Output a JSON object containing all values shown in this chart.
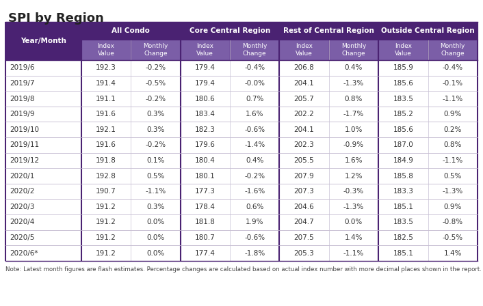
{
  "title": "SPI by Region",
  "note": "Note: Latest month figures are flash estimates. Percentage changes are calculated based on actual index number with more decimal places shown in the report.",
  "header_bg": "#4a2272",
  "header_text": "#ffffff",
  "subheader_bg": "#7b5ea7",
  "subheader_text": "#ffffff",
  "row_bg": "#ffffff",
  "border_color": "#c8c0d4",
  "thick_border_color": "#4a2272",
  "title_color": "#222222",
  "body_text_color": "#333333",
  "note_text_color": "#444444",
  "col0_header": "Year/Month",
  "group_headers": [
    "All Condo",
    "Core Central Region",
    "Rest of Central Region",
    "Outside Central Region"
  ],
  "sub_headers": [
    "Index\nValue",
    "Monthly\nChange"
  ],
  "col_widths_raw": [
    1.3,
    0.85,
    0.85,
    0.85,
    0.85,
    0.85,
    0.85,
    0.85,
    0.85
  ],
  "rows": [
    [
      "2019/6",
      "192.3",
      "-0.2%",
      "179.4",
      "-0.4%",
      "206.8",
      "0.4%",
      "185.9",
      "-0.4%"
    ],
    [
      "2019/7",
      "191.4",
      "-0.5%",
      "179.4",
      "-0.0%",
      "204.1",
      "-1.3%",
      "185.6",
      "-0.1%"
    ],
    [
      "2019/8",
      "191.1",
      "-0.2%",
      "180.6",
      "0.7%",
      "205.7",
      "0.8%",
      "183.5",
      "-1.1%"
    ],
    [
      "2019/9",
      "191.6",
      "0.3%",
      "183.4",
      "1.6%",
      "202.2",
      "-1.7%",
      "185.2",
      "0.9%"
    ],
    [
      "2019/10",
      "192.1",
      "0.3%",
      "182.3",
      "-0.6%",
      "204.1",
      "1.0%",
      "185.6",
      "0.2%"
    ],
    [
      "2019/11",
      "191.6",
      "-0.2%",
      "179.6",
      "-1.4%",
      "202.3",
      "-0.9%",
      "187.0",
      "0.8%"
    ],
    [
      "2019/12",
      "191.8",
      "0.1%",
      "180.4",
      "0.4%",
      "205.5",
      "1.6%",
      "184.9",
      "-1.1%"
    ],
    [
      "2020/1",
      "192.8",
      "0.5%",
      "180.1",
      "-0.2%",
      "207.9",
      "1.2%",
      "185.8",
      "0.5%"
    ],
    [
      "2020/2",
      "190.7",
      "-1.1%",
      "177.3",
      "-1.6%",
      "207.3",
      "-0.3%",
      "183.3",
      "-1.3%"
    ],
    [
      "2020/3",
      "191.2",
      "0.3%",
      "178.4",
      "0.6%",
      "204.6",
      "-1.3%",
      "185.1",
      "0.9%"
    ],
    [
      "2020/4",
      "191.2",
      "0.0%",
      "181.8",
      "1.9%",
      "204.7",
      "0.0%",
      "183.5",
      "-0.8%"
    ],
    [
      "2020/5",
      "191.2",
      "0.0%",
      "180.7",
      "-0.6%",
      "207.5",
      "1.4%",
      "182.5",
      "-0.5%"
    ],
    [
      "2020/6*",
      "191.2",
      "0.0%",
      "177.4",
      "-1.8%",
      "205.3",
      "-1.1%",
      "185.1",
      "1.4%"
    ]
  ]
}
